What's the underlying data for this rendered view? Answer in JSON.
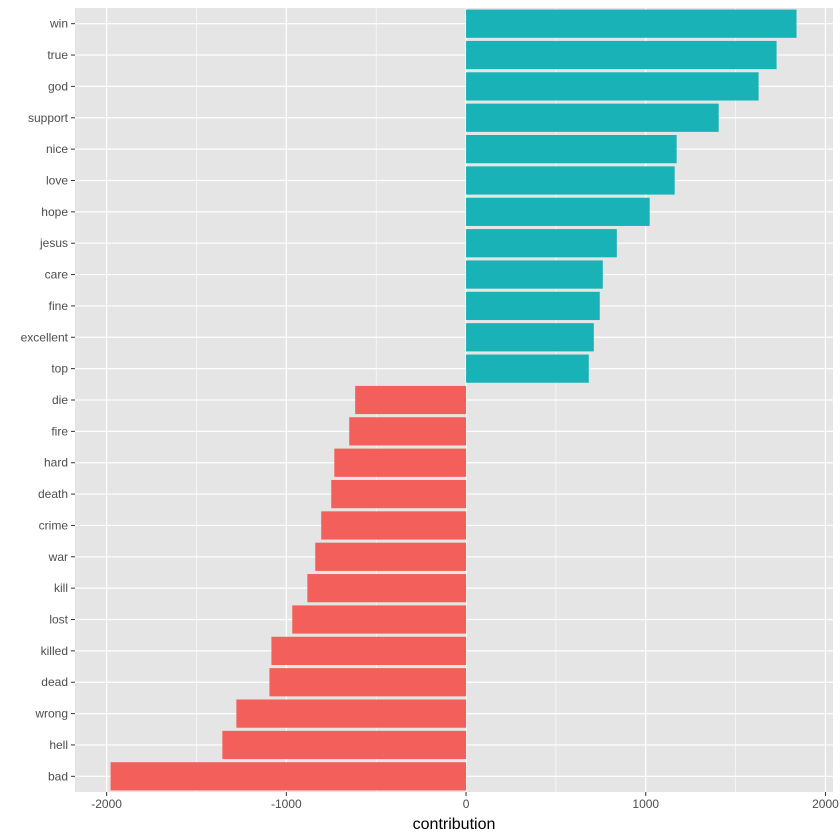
{
  "chart_data": {
    "type": "bar",
    "orientation": "horizontal",
    "title": "",
    "xlabel": "contribution",
    "ylabel": "",
    "xlim": [
      -2176,
      2042
    ],
    "xticks": [
      -2000,
      -1000,
      0,
      1000,
      2000
    ],
    "xtick_labels": [
      "-2000",
      "-1000",
      "0",
      "1000",
      "2000"
    ],
    "grid": true,
    "legend": "none",
    "categories": [
      "win",
      "true",
      "god",
      "support",
      "nice",
      "love",
      "hope",
      "jesus",
      "care",
      "fine",
      "excellent",
      "top",
      "die",
      "fire",
      "hard",
      "death",
      "crime",
      "war",
      "kill",
      "lost",
      "killed",
      "dead",
      "wrong",
      "hell",
      "bad"
    ],
    "values": [
      1839,
      1728,
      1628,
      1406,
      1172,
      1161,
      1022,
      839,
      761,
      744,
      711,
      683,
      -617,
      -650,
      -733,
      -750,
      -806,
      -839,
      -883,
      -967,
      -1083,
      -1094,
      -1278,
      -1356,
      -1978
    ],
    "colors": {
      "positive": "#19B2B7",
      "negative": "#F35F5B",
      "panel": "#E5E5E5",
      "grid": "#FFFFFF"
    }
  }
}
